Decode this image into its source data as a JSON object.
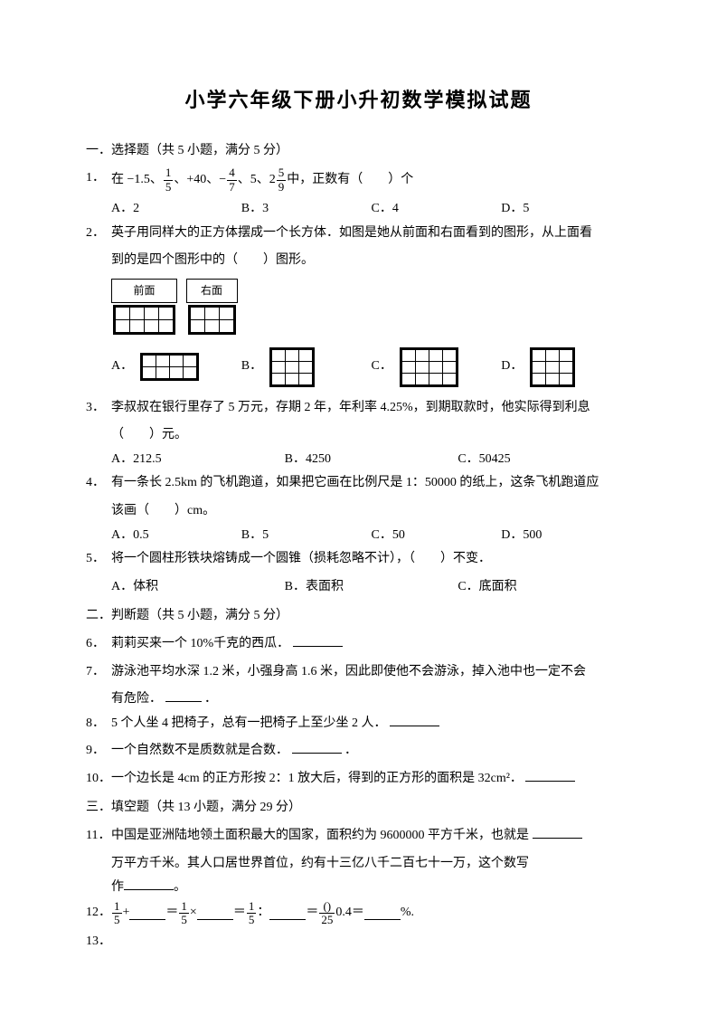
{
  "title": "小学六年级下册小升初数学模拟试题",
  "sections": {
    "s1": {
      "header": "一．选择题（共 5 小题，满分 5 分）"
    },
    "s2": {
      "header": "二．判断题（共 5 小题，满分 5 分）"
    },
    "s3": {
      "header": "三．填空题（共 13 小题，满分 29 分）"
    }
  },
  "q1": {
    "num": "1．",
    "text_a": "在 −1.5、",
    "frac1": {
      "n": "1",
      "d": "5"
    },
    "text_b": "、+40、−",
    "frac2": {
      "n": "4",
      "d": "7"
    },
    "text_c": "、5、2",
    "frac3": {
      "n": "5",
      "d": "9"
    },
    "text_d": "中，正数有（　　）个",
    "opts": {
      "a": "A．2",
      "b": "B．3",
      "c": "C．4",
      "d": "D．5"
    }
  },
  "q2": {
    "num": "2．",
    "text1": "英子用同样大的正方体摆成一个长方体．如图是她从前面和右面看到的图形，从上面看",
    "text2": "到的是四个图形中的（　　）图形。",
    "front_label": "前面",
    "right_label": "右面",
    "front_grid": {
      "rows": 2,
      "cols": 4
    },
    "right_grid": {
      "rows": 2,
      "cols": 3
    },
    "opts": {
      "a": {
        "label": "A．",
        "rows": 2,
        "cols": 4
      },
      "b": {
        "label": "B．",
        "rows": 3,
        "cols": 3
      },
      "c": {
        "label": "C．",
        "rows": 3,
        "cols": 4
      },
      "d": {
        "label": "D．",
        "rows": 3,
        "cols": 3
      }
    }
  },
  "q3": {
    "num": "3．",
    "text1": "李叔叔在银行里存了 5 万元，存期 2 年，年利率 4.25%，到期取款时，他实际得到利息",
    "text2": "（　　）元。",
    "opts": {
      "a": "A．212.5",
      "b": "B．4250",
      "c": "C．50425"
    }
  },
  "q4": {
    "num": "4．",
    "text1": "有一条长 2.5km 的飞机跑道，如果把它画在比例尺是 1：50000 的纸上，这条飞机跑道应",
    "text2": "该画（　　）cm。",
    "opts": {
      "a": "A．0.5",
      "b": "B．5",
      "c": "C．50",
      "d": "D．500"
    }
  },
  "q5": {
    "num": "5．",
    "text": "将一个圆柱形铁块熔铸成一个圆锥（损耗忽略不计），（　　）不变．",
    "opts": {
      "a": "A．体积",
      "b": "B．表面积",
      "c": "C．底面积"
    }
  },
  "q6": {
    "num": "6．",
    "text": "莉莉买来一个 10%千克的西瓜．"
  },
  "q7": {
    "num": "7．",
    "text1": "游泳池平均水深 1.2 米，小强身高 1.6 米，因此即使他不会游泳，掉入池中也一定不会",
    "text2": "有危险．",
    "dot": "．"
  },
  "q8": {
    "num": "8．",
    "text": "5 个人坐 4 把椅子，总有一把椅子上至少坐 2 人．"
  },
  "q9": {
    "num": "9．",
    "text": "一个自然数不是质数就是合数．",
    "dot": "．"
  },
  "q10": {
    "num": "10．",
    "text": "一个边长是 4cm 的正方形按 2：1 放大后，得到的正方形的面积是 32cm²．"
  },
  "q11": {
    "num": "11．",
    "text1": "中国是亚洲陆地领土面积最大的国家，面积约为 9600000 平方千米，也就是 ",
    "text2": "万平方千米。其人口居世界首位，约有十三亿八千二百七十一万，这个数写",
    "text3": "作",
    "dot": "。"
  },
  "q12": {
    "num": "12．",
    "frac1": {
      "n": "1",
      "d": "5"
    },
    "plus": "+",
    "eq": "＝",
    "mult": "×",
    "colon": "：",
    "frac2": {
      "n": "()",
      "d": "25"
    },
    "tail": "0.4＝",
    "pct": "%."
  },
  "q13": {
    "num": "13．"
  },
  "colors": {
    "text": "#000000",
    "bg": "#ffffff"
  },
  "fonts": {
    "body_size": 14,
    "title_size": 22
  }
}
